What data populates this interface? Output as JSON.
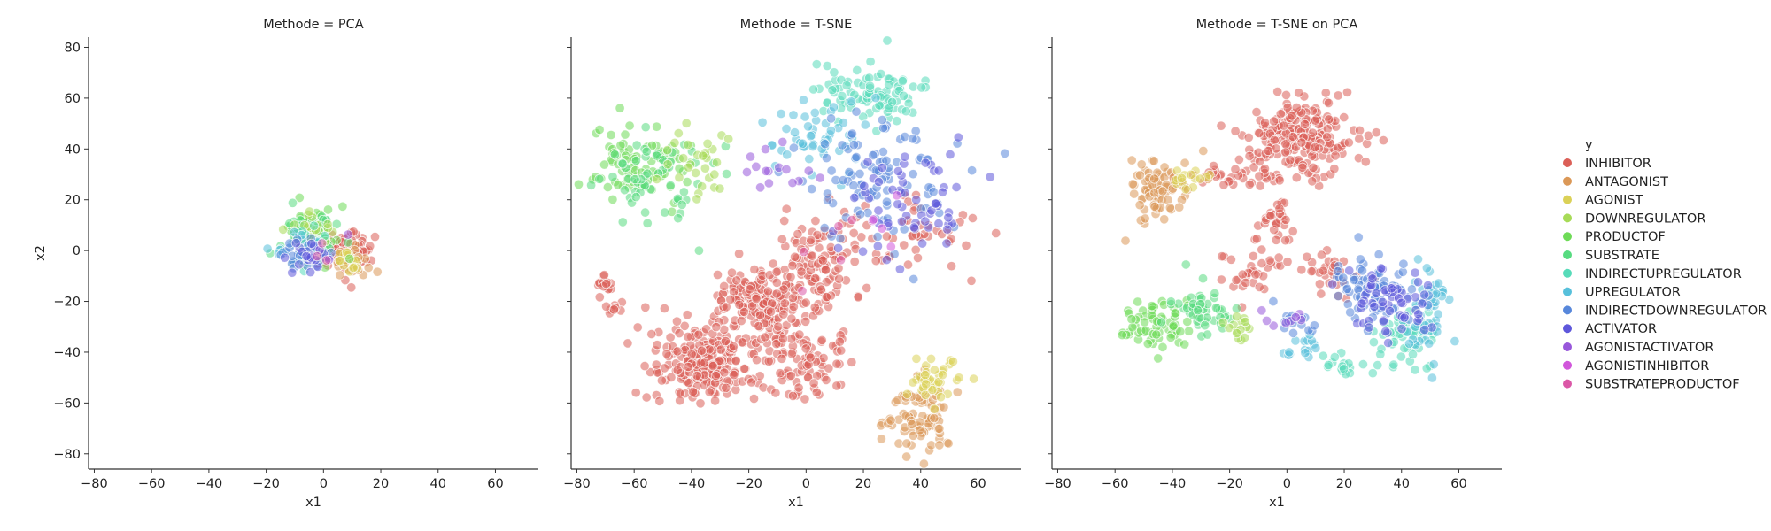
{
  "chart_data": {
    "type": "scatter",
    "legend": {
      "title": "y",
      "placement": "right",
      "entries": [
        {
          "name": "INHIBITOR",
          "color": "#db5f57"
        },
        {
          "name": "ANTAGONIST",
          "color": "#db9857"
        },
        {
          "name": "AGONIST",
          "color": "#dbd157"
        },
        {
          "name": "DOWNREGULATOR",
          "color": "#a7db57"
        },
        {
          "name": "PRODUCTOF",
          "color": "#6edb57"
        },
        {
          "name": "SUBSTRATE",
          "color": "#57db80"
        },
        {
          "name": "INDIRECTUPREGULATOR",
          "color": "#57dbb9"
        },
        {
          "name": "UPREGULATOR",
          "color": "#57c0db"
        },
        {
          "name": "INDIRECTDOWNREGULATOR",
          "color": "#5787db"
        },
        {
          "name": "ACTIVATOR",
          "color": "#5e57db"
        },
        {
          "name": "AGONISTACTIVATOR",
          "color": "#9857db"
        },
        {
          "name": "AGONISTINHIBITOR",
          "color": "#d157db"
        },
        {
          "name": "SUBSTRATEPRODUCTOF",
          "color": "#db57a7"
        }
      ]
    },
    "shared_axes": {
      "xlabel": "x1",
      "ylabel": "x2",
      "xlim": [
        -82,
        75
      ],
      "ylim": [
        -86,
        84
      ],
      "xticks": [
        -80,
        -60,
        -40,
        -20,
        0,
        20,
        40,
        60
      ],
      "yticks": [
        -80,
        -60,
        -40,
        -20,
        0,
        20,
        40,
        60,
        80
      ],
      "grid": false
    },
    "panels": [
      {
        "title": "Methode = PCA",
        "clusters": [
          {
            "class": "INHIBITOR",
            "cx": 5,
            "cy": 0,
            "sx": 5,
            "sy": 4,
            "n": 110
          },
          {
            "class": "ANTAGONIST",
            "cx": 10,
            "cy": -5,
            "sx": 3,
            "sy": 2.5,
            "n": 30
          },
          {
            "class": "AGONIST",
            "cx": 8,
            "cy": -4,
            "sx": 3,
            "sy": 2,
            "n": 15
          },
          {
            "class": "PRODUCTOF",
            "cx": -3,
            "cy": 8,
            "sx": 5,
            "sy": 5,
            "n": 55
          },
          {
            "class": "SUBSTRATE",
            "cx": -4,
            "cy": 6,
            "sx": 5,
            "sy": 5,
            "n": 45
          },
          {
            "class": "DOWNREGULATOR",
            "cx": -2,
            "cy": 10,
            "sx": 4,
            "sy": 4,
            "n": 20
          },
          {
            "class": "INDIRECTUPREGULATOR",
            "cx": -7,
            "cy": 2,
            "sx": 4,
            "sy": 4,
            "n": 25
          },
          {
            "class": "UPREGULATOR",
            "cx": -9,
            "cy": -1,
            "sx": 4,
            "sy": 3,
            "n": 20
          },
          {
            "class": "INDIRECTDOWNREGULATOR",
            "cx": -6,
            "cy": -2,
            "sx": 4,
            "sy": 3,
            "n": 25
          },
          {
            "class": "ACTIVATOR",
            "cx": -5,
            "cy": -3,
            "sx": 4,
            "sy": 3,
            "n": 20
          },
          {
            "class": "AGONISTACTIVATOR",
            "cx": 3,
            "cy": 2,
            "sx": 3,
            "sy": 3,
            "n": 3
          },
          {
            "class": "SUBSTRATEPRODUCTOF",
            "cx": 1,
            "cy": 0,
            "sx": 3,
            "sy": 3,
            "n": 3
          }
        ]
      },
      {
        "title": "Methode = T-SNE",
        "clusters": [
          {
            "class": "INHIBITOR",
            "cx": -35,
            "cy": -45,
            "sx": 9,
            "sy": 7,
            "n": 230
          },
          {
            "class": "INHIBITOR",
            "cx": -15,
            "cy": -20,
            "sx": 9,
            "sy": 8,
            "n": 190
          },
          {
            "class": "INHIBITOR",
            "cx": 5,
            "cy": -5,
            "sx": 8,
            "sy": 10,
            "n": 110
          },
          {
            "class": "INHIBITOR",
            "cx": -2,
            "cy": -45,
            "sx": 8,
            "sy": 7,
            "n": 90
          },
          {
            "class": "INHIBITOR",
            "cx": -70,
            "cy": -13,
            "sx": 2,
            "sy": 2,
            "n": 14
          },
          {
            "class": "INHIBITOR",
            "cx": -67,
            "cy": -23,
            "sx": 1.5,
            "sy": 1.5,
            "n": 8
          },
          {
            "class": "INHIBITOR",
            "cx": 35,
            "cy": 5,
            "sx": 12,
            "sy": 7,
            "n": 45
          },
          {
            "class": "ANTAGONIST",
            "cx": 40,
            "cy": -65,
            "sx": 5,
            "sy": 7,
            "n": 80
          },
          {
            "class": "AGONIST",
            "cx": 45,
            "cy": -52,
            "sx": 5,
            "sy": 5,
            "n": 40
          },
          {
            "class": "PRODUCTOF",
            "cx": -58,
            "cy": 35,
            "sx": 9,
            "sy": 8,
            "n": 80
          },
          {
            "class": "SUBSTRATE",
            "cx": -55,
            "cy": 30,
            "sx": 9,
            "sy": 9,
            "n": 60
          },
          {
            "class": "DOWNREGULATOR",
            "cx": -40,
            "cy": 35,
            "sx": 7,
            "sy": 7,
            "n": 30
          },
          {
            "class": "INDIRECTUPREGULATOR",
            "cx": 22,
            "cy": 62,
            "sx": 9,
            "sy": 6,
            "n": 90
          },
          {
            "class": "UPREGULATOR",
            "cx": 5,
            "cy": 45,
            "sx": 10,
            "sy": 8,
            "n": 50
          },
          {
            "class": "INDIRECTDOWNREGULATOR",
            "cx": 25,
            "cy": 30,
            "sx": 13,
            "sy": 12,
            "n": 100
          },
          {
            "class": "ACTIVATOR",
            "cx": 35,
            "cy": 20,
            "sx": 12,
            "sy": 12,
            "n": 60
          },
          {
            "class": "AGONISTACTIVATOR",
            "cx": -10,
            "cy": 30,
            "sx": 7,
            "sy": 5,
            "n": 15
          },
          {
            "class": "AGONISTINHIBITOR",
            "cx": 20,
            "cy": 10,
            "sx": 10,
            "sy": 8,
            "n": 5
          },
          {
            "class": "SUBSTRATEPRODUCTOF",
            "cx": 10,
            "cy": 5,
            "sx": 10,
            "sy": 10,
            "n": 5
          }
        ]
      },
      {
        "title": "Methode = T-SNE on PCA",
        "clusters": [
          {
            "class": "INHIBITOR",
            "cx": 5,
            "cy": 45,
            "sx": 10,
            "sy": 8,
            "n": 220
          },
          {
            "class": "INHIBITOR",
            "cx": -5,
            "cy": 10,
            "sx": 3,
            "sy": 8,
            "n": 40
          },
          {
            "class": "INHIBITOR",
            "cx": -15,
            "cy": -10,
            "sx": 4,
            "sy": 5,
            "n": 25
          },
          {
            "class": "INHIBITOR",
            "cx": 15,
            "cy": -8,
            "sx": 5,
            "sy": 5,
            "n": 30
          },
          {
            "class": "INHIBITOR",
            "cx": -20,
            "cy": 29,
            "sx": 8,
            "sy": 2,
            "n": 30
          },
          {
            "class": "ANTAGONIST",
            "cx": -45,
            "cy": 25,
            "sx": 5,
            "sy": 7,
            "n": 80
          },
          {
            "class": "AGONIST",
            "cx": -35,
            "cy": 28,
            "sx": 4,
            "sy": 3,
            "n": 15
          },
          {
            "class": "PRODUCTOF",
            "cx": -45,
            "cy": -28,
            "sx": 6,
            "sy": 5,
            "n": 70
          },
          {
            "class": "SUBSTRATE",
            "cx": -30,
            "cy": -22,
            "sx": 5,
            "sy": 5,
            "n": 50
          },
          {
            "class": "DOWNREGULATOR",
            "cx": -15,
            "cy": -30,
            "sx": 3,
            "sy": 3,
            "n": 15
          },
          {
            "class": "INDIRECTUPREGULATOR",
            "cx": 40,
            "cy": -35,
            "sx": 8,
            "sy": 6,
            "n": 60
          },
          {
            "class": "UPREGULATOR",
            "cx": 50,
            "cy": -25,
            "sx": 4,
            "sy": 10,
            "n": 50
          },
          {
            "class": "INDIRECTDOWNREGULATOR",
            "cx": 30,
            "cy": -15,
            "sx": 8,
            "sy": 6,
            "n": 80
          },
          {
            "class": "ACTIVATOR",
            "cx": 35,
            "cy": -20,
            "sx": 8,
            "sy": 7,
            "n": 60
          },
          {
            "class": "UPREGULATOR",
            "cx": 5,
            "cy": -38,
            "sx": 3,
            "sy": 2,
            "n": 15
          },
          {
            "class": "INDIRECTUPREGULATOR",
            "cx": 18,
            "cy": -45,
            "sx": 3,
            "sy": 2,
            "n": 15
          },
          {
            "class": "INDIRECTDOWNREGULATOR",
            "cx": 5,
            "cy": -28,
            "sx": 4,
            "sy": 3,
            "n": 15
          },
          {
            "class": "AGONISTACTIVATOR",
            "cx": 0,
            "cy": -25,
            "sx": 4,
            "sy": 3,
            "n": 8
          }
        ]
      }
    ]
  }
}
